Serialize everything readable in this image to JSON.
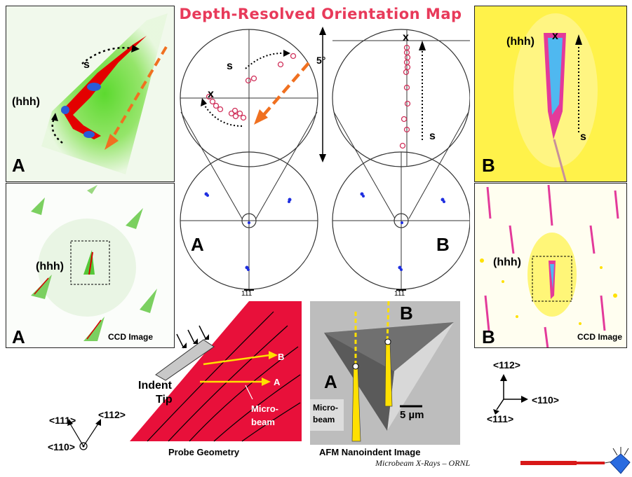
{
  "title": "Depth-Resolved Orientation Map",
  "angle_label": "5°",
  "hhh": "(hhh)",
  "s_label": "s",
  "x_mark": "x",
  "label_a": "A",
  "label_b": "B",
  "ccd_caption": "CCD Image",
  "pole_label": "111",
  "probe": {
    "caption": "Probe Geometry",
    "indent": "Indent",
    "tip": "Tip",
    "microbeam_1": "Micro-",
    "microbeam_2": "beam",
    "a": "A",
    "b": "B"
  },
  "afm": {
    "caption": "AFM Nanoindent Image",
    "microbeam_1": "Micro-",
    "microbeam_2": "beam",
    "scale": "5 µm",
    "a": "A",
    "b": "B"
  },
  "axes_left": {
    "a111": "<111>",
    "a112": "<112>",
    "a110": "<110>"
  },
  "axes_right": {
    "a112": "<112>",
    "a110": "<110>",
    "a111": "<111>"
  },
  "credit": "Microbeam X-Rays  – ORNL",
  "colors": {
    "title": "#e83a5a",
    "arrow_orange": "#f07020",
    "probe_red": "#e8103a",
    "beam_yellow": "#ffe000"
  }
}
